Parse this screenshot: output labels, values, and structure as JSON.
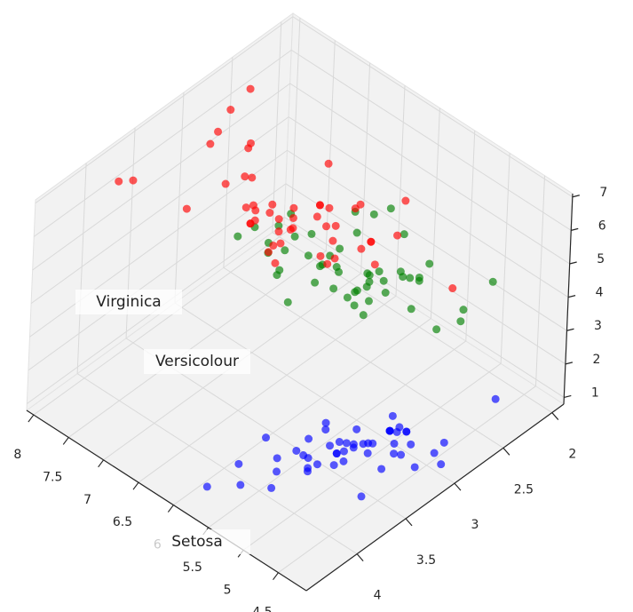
{
  "chart_data": {
    "type": "scatter3d",
    "xlim": [
      4.1,
      8.1
    ],
    "ylim": [
      1.88,
      4.52
    ],
    "zlim": [
      0.8,
      7.1
    ],
    "xticks": [
      4.5,
      5.0,
      5.5,
      6.0,
      6.5,
      7.0,
      7.5,
      8.0
    ],
    "yticks": [
      2.0,
      2.5,
      3.0,
      3.5,
      4.0
    ],
    "zticks": [
      1,
      2,
      3,
      4,
      5,
      6,
      7
    ],
    "grid": true,
    "annotations": [
      "Setosa",
      "Versicolour",
      "Virginica"
    ],
    "series": [
      {
        "color": "#0000ff",
        "x": [
          5.1,
          4.9,
          4.7,
          4.6,
          5.0,
          5.4,
          4.6,
          5.0,
          4.4,
          4.9,
          5.4,
          4.8,
          4.8,
          4.3,
          5.8,
          5.7,
          5.4,
          5.1,
          5.7,
          5.1,
          5.4,
          5.1,
          4.6,
          5.1,
          4.8,
          5.0,
          5.0,
          5.2,
          5.2,
          4.7,
          4.8,
          5.4,
          5.2,
          5.5,
          4.9,
          5.0,
          5.5,
          4.9,
          4.4,
          5.1,
          5.0,
          4.5,
          4.4,
          5.0,
          5.1,
          4.8,
          5.1,
          4.6,
          5.3,
          5.0
        ],
        "y": [
          3.5,
          3.0,
          3.2,
          3.1,
          3.6,
          3.9,
          3.4,
          3.4,
          2.9,
          3.1,
          3.7,
          3.4,
          3.0,
          3.0,
          4.0,
          4.4,
          3.9,
          3.5,
          3.8,
          3.8,
          3.4,
          3.7,
          3.6,
          3.3,
          3.4,
          3.0,
          3.4,
          3.5,
          3.4,
          3.2,
          3.1,
          3.4,
          4.1,
          4.2,
          3.1,
          3.2,
          3.5,
          3.1,
          3.0,
          3.4,
          3.5,
          2.3,
          3.2,
          3.5,
          3.8,
          3.0,
          3.8,
          3.2,
          3.7,
          3.3
        ],
        "z": [
          1.4,
          1.4,
          1.3,
          1.5,
          1.4,
          1.7,
          1.4,
          1.5,
          1.4,
          1.5,
          1.5,
          1.6,
          1.4,
          1.1,
          1.2,
          1.5,
          1.3,
          1.4,
          1.7,
          1.5,
          1.7,
          1.5,
          1.0,
          1.7,
          1.9,
          1.6,
          1.6,
          1.5,
          1.4,
          1.6,
          1.6,
          1.5,
          1.5,
          1.4,
          1.5,
          1.2,
          1.3,
          1.5,
          1.3,
          1.5,
          1.3,
          1.3,
          1.3,
          1.6,
          1.9,
          1.4,
          1.6,
          1.4,
          1.5,
          1.4
        ]
      },
      {
        "color": "#008000",
        "x": [
          7.0,
          6.4,
          6.9,
          5.5,
          6.5,
          5.7,
          6.3,
          4.9,
          6.6,
          5.2,
          5.0,
          5.9,
          6.0,
          6.1,
          5.6,
          6.7,
          5.6,
          5.8,
          6.2,
          5.6,
          5.9,
          6.1,
          6.3,
          6.1,
          6.4,
          6.6,
          6.8,
          6.7,
          6.0,
          5.7,
          5.5,
          5.5,
          5.8,
          6.0,
          5.4,
          6.0,
          6.7,
          6.3,
          5.6,
          5.5,
          5.5,
          6.1,
          5.8,
          5.0,
          5.6,
          5.7,
          5.7,
          6.2,
          5.1,
          5.7
        ],
        "y": [
          3.2,
          3.2,
          3.1,
          2.3,
          2.8,
          2.8,
          3.3,
          2.4,
          2.9,
          2.7,
          2.0,
          3.0,
          2.2,
          2.9,
          2.9,
          3.1,
          3.0,
          2.7,
          2.2,
          2.5,
          3.2,
          2.8,
          2.5,
          2.8,
          2.9,
          3.0,
          2.8,
          3.0,
          2.9,
          2.6,
          2.4,
          2.4,
          2.7,
          2.7,
          3.0,
          3.4,
          3.1,
          2.3,
          3.0,
          2.5,
          2.6,
          3.0,
          2.6,
          2.3,
          2.7,
          3.0,
          2.9,
          2.9,
          2.5,
          2.8
        ],
        "z": [
          4.7,
          4.5,
          4.9,
          4.0,
          4.6,
          4.5,
          4.7,
          3.3,
          4.6,
          3.9,
          3.5,
          4.2,
          4.0,
          4.7,
          3.6,
          4.4,
          4.5,
          4.1,
          4.5,
          3.9,
          4.8,
          4.0,
          4.9,
          4.7,
          4.3,
          4.4,
          4.8,
          5.0,
          4.5,
          3.5,
          3.8,
          3.7,
          3.9,
          5.1,
          4.5,
          4.5,
          4.7,
          4.4,
          4.1,
          4.0,
          4.4,
          4.6,
          4.0,
          3.3,
          4.2,
          4.2,
          4.2,
          4.3,
          3.0,
          4.1
        ]
      },
      {
        "color": "#ff0000",
        "x": [
          6.3,
          5.8,
          7.1,
          6.3,
          6.5,
          7.6,
          4.9,
          7.3,
          6.7,
          7.2,
          6.5,
          6.4,
          6.8,
          5.7,
          5.8,
          6.4,
          6.5,
          7.7,
          7.7,
          6.0,
          6.9,
          5.6,
          7.7,
          6.3,
          6.7,
          7.2,
          6.2,
          6.1,
          6.4,
          7.2,
          7.4,
          7.9,
          6.4,
          6.3,
          6.1,
          7.7,
          6.3,
          6.4,
          6.0,
          6.9,
          6.7,
          6.9,
          5.8,
          6.8,
          6.7,
          6.7,
          6.3,
          6.5,
          6.2,
          5.9
        ],
        "y": [
          3.3,
          2.7,
          3.0,
          2.9,
          3.0,
          3.0,
          2.5,
          2.9,
          2.5,
          3.6,
          3.2,
          2.7,
          3.0,
          2.5,
          2.8,
          3.2,
          3.0,
          3.8,
          2.6,
          2.2,
          3.2,
          2.8,
          2.8,
          2.7,
          3.3,
          3.2,
          2.8,
          3.0,
          2.8,
          3.0,
          2.8,
          3.8,
          2.8,
          2.8,
          2.6,
          3.0,
          3.4,
          3.1,
          3.0,
          3.1,
          3.1,
          3.1,
          2.7,
          3.2,
          3.3,
          3.0,
          2.5,
          3.0,
          3.4,
          3.0
        ],
        "z": [
          6.0,
          5.1,
          5.9,
          5.6,
          5.8,
          6.6,
          4.5,
          6.3,
          5.8,
          6.1,
          5.1,
          5.3,
          5.5,
          5.0,
          5.1,
          5.3,
          5.5,
          6.7,
          6.9,
          5.0,
          5.7,
          4.9,
          6.7,
          4.9,
          5.7,
          6.0,
          4.8,
          4.9,
          5.6,
          5.8,
          6.1,
          6.4,
          5.6,
          5.1,
          5.6,
          6.1,
          5.6,
          5.5,
          4.8,
          5.4,
          5.6,
          5.1,
          5.1,
          5.9,
          5.7,
          5.2,
          5.0,
          5.2,
          5.4,
          5.1
        ]
      }
    ]
  }
}
